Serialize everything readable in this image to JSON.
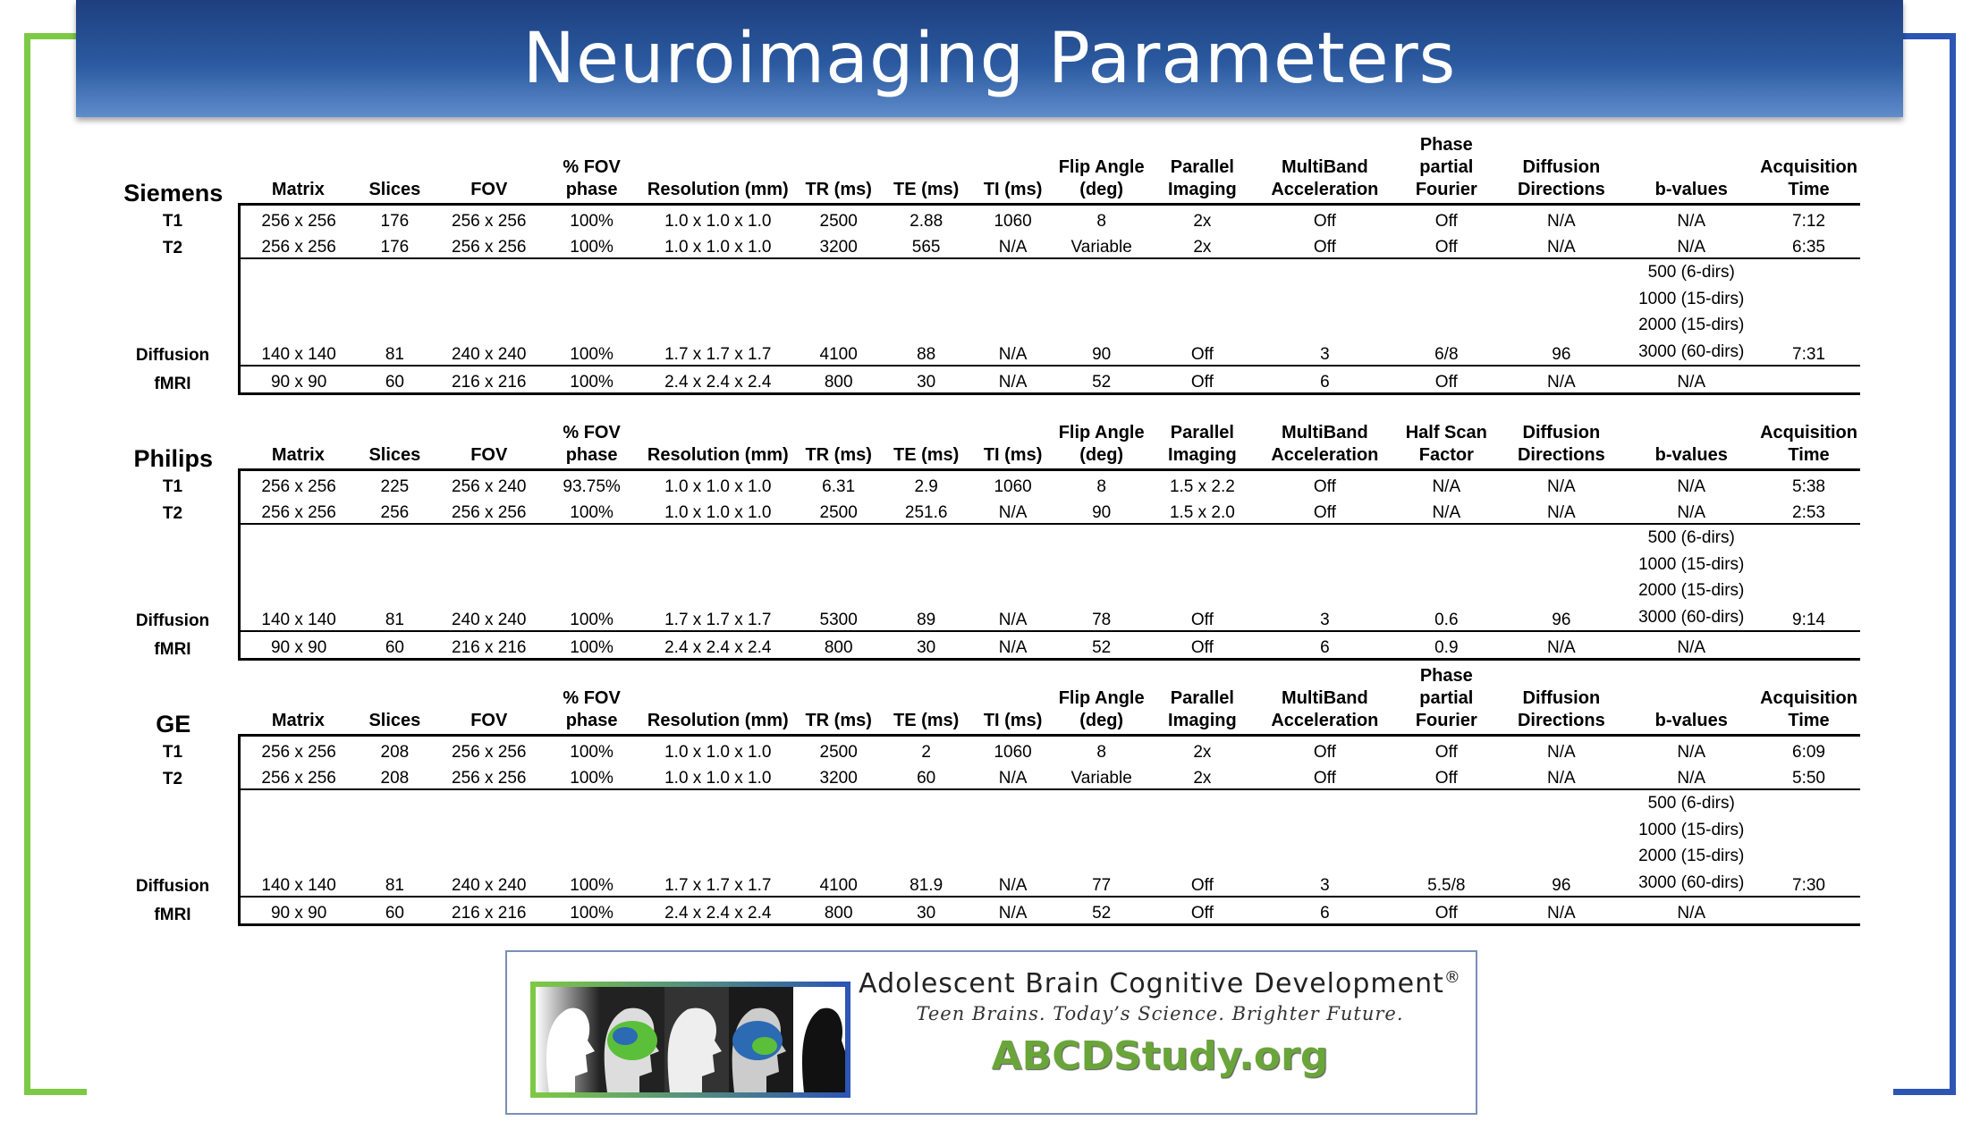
{
  "title": "Neuroimaging Parameters",
  "colors": {
    "frame_green": "#7dc945",
    "frame_blue": "#2c55b4",
    "title_bg": "#2b5aa0"
  },
  "tables": [
    {
      "vendor": "Siemens",
      "headers": [
        "Matrix",
        "Slices",
        "FOV",
        "% FOV phase",
        "Resolution (mm)",
        "TR (ms)",
        "TE (ms)",
        "TI (ms)",
        "Flip Angle (deg)",
        "Parallel Imaging",
        "MultiBand Acceleration",
        "Phase partial Fourier",
        "Diffusion Directions",
        "b-values",
        "Acquisition Time"
      ],
      "rows": [
        {
          "label": "T1",
          "cells": [
            "256 x 256",
            "176",
            "256 x 256",
            "100%",
            "1.0 x 1.0 x 1.0",
            "2500",
            "2.88",
            "1060",
            "8",
            "2x",
            "Off",
            "Off",
            "N/A",
            "N/A",
            "7:12"
          ]
        },
        {
          "label": "T2",
          "cells": [
            "256 x 256",
            "176",
            "256 x 256",
            "100%",
            "1.0 x 1.0 x 1.0",
            "3200",
            "565",
            "N/A",
            "Variable",
            "2x",
            "Off",
            "Off",
            "N/A",
            "N/A",
            "6:35"
          ]
        },
        {
          "label": "Diffusion",
          "cells": [
            "140 x 140",
            "81",
            "240 x 240",
            "100%",
            "1.7 x 1.7 x 1.7",
            "4100",
            "88",
            "N/A",
            "90",
            "Off",
            "3",
            "6/8",
            "96",
            "500 (6-dirs)|1000 (15-dirs)|2000 (15-dirs)|3000 (60-dirs)",
            "7:31"
          ]
        },
        {
          "label": "fMRI",
          "cells": [
            "90 x 90",
            "60",
            "216 x 216",
            "100%",
            "2.4 x 2.4 x 2.4",
            "800",
            "30",
            "N/A",
            "52",
            "Off",
            "6",
            "Off",
            "N/A",
            "N/A",
            ""
          ]
        }
      ]
    },
    {
      "vendor": "Philips",
      "headers": [
        "Matrix",
        "Slices",
        "FOV",
        "% FOV phase",
        "Resolution (mm)",
        "TR (ms)",
        "TE (ms)",
        "TI (ms)",
        "Flip Angle (deg)",
        "Parallel Imaging",
        "MultiBand Acceleration",
        "Half Scan Factor",
        "Diffusion Directions",
        "b-values",
        "Acquisition Time"
      ],
      "rows": [
        {
          "label": "T1",
          "cells": [
            "256 x 256",
            "225",
            "256 x 240",
            "93.75%",
            "1.0 x 1.0 x 1.0",
            "6.31",
            "2.9",
            "1060",
            "8",
            "1.5 x 2.2",
            "Off",
            "N/A",
            "N/A",
            "N/A",
            "5:38"
          ]
        },
        {
          "label": "T2",
          "cells": [
            "256 x 256",
            "256",
            "256 x 256",
            "100%",
            "1.0 x 1.0 x 1.0",
            "2500",
            "251.6",
            "N/A",
            "90",
            "1.5 x 2.0",
            "Off",
            "N/A",
            "N/A",
            "N/A",
            "2:53"
          ]
        },
        {
          "label": "Diffusion",
          "cells": [
            "140 x 140",
            "81",
            "240 x 240",
            "100%",
            "1.7 x 1.7 x 1.7",
            "5300",
            "89",
            "N/A",
            "78",
            "Off",
            "3",
            "0.6",
            "96",
            "500 (6-dirs)|1000 (15-dirs)|2000 (15-dirs)|3000 (60-dirs)",
            "9:14"
          ]
        },
        {
          "label": "fMRI",
          "cells": [
            "90 x 90",
            "60",
            "216 x 216",
            "100%",
            "2.4 x 2.4 x 2.4",
            "800",
            "30",
            "N/A",
            "52",
            "Off",
            "6",
            "0.9",
            "N/A",
            "N/A",
            ""
          ]
        }
      ]
    },
    {
      "vendor": "GE",
      "headers": [
        "Matrix",
        "Slices",
        "FOV",
        "% FOV phase",
        "Resolution (mm)",
        "TR (ms)",
        "TE (ms)",
        "TI (ms)",
        "Flip Angle (deg)",
        "Parallel Imaging",
        "MultiBand Acceleration",
        "Phase partial Fourier",
        "Diffusion Directions",
        "b-values",
        "Acquisition Time"
      ],
      "rows": [
        {
          "label": "T1",
          "cells": [
            "256 x 256",
            "208",
            "256 x 256",
            "100%",
            "1.0 x 1.0 x 1.0",
            "2500",
            "2",
            "1060",
            "8",
            "2x",
            "Off",
            "Off",
            "N/A",
            "N/A",
            "6:09"
          ]
        },
        {
          "label": "T2",
          "cells": [
            "256 x 256",
            "208",
            "256 x 256",
            "100%",
            "1.0 x 1.0 x 1.0",
            "3200",
            "60",
            "N/A",
            "Variable",
            "2x",
            "Off",
            "Off",
            "N/A",
            "N/A",
            "5:50"
          ]
        },
        {
          "label": "Diffusion",
          "cells": [
            "140 x 140",
            "81",
            "240 x 240",
            "100%",
            "1.7 x 1.7 x 1.7",
            "4100",
            "81.9",
            "N/A",
            "77",
            "Off",
            "3",
            "5.5/8",
            "96",
            "500 (6-dirs)|1000 (15-dirs)|2000 (15-dirs)|3000 (60-dirs)",
            "7:30"
          ]
        },
        {
          "label": "fMRI",
          "cells": [
            "90 x 90",
            "60",
            "216 x 216",
            "100%",
            "2.4 x 2.4 x 2.4",
            "800",
            "30",
            "N/A",
            "52",
            "Off",
            "6",
            "Off",
            "N/A",
            "N/A",
            ""
          ]
        }
      ]
    }
  ],
  "logo": {
    "name": "Adolescent Brain Cognitive Development",
    "registered": "®",
    "tagline": "Teen Brains. Today’s Science. Brighter Future.",
    "url": "ABCDStudy.org"
  }
}
